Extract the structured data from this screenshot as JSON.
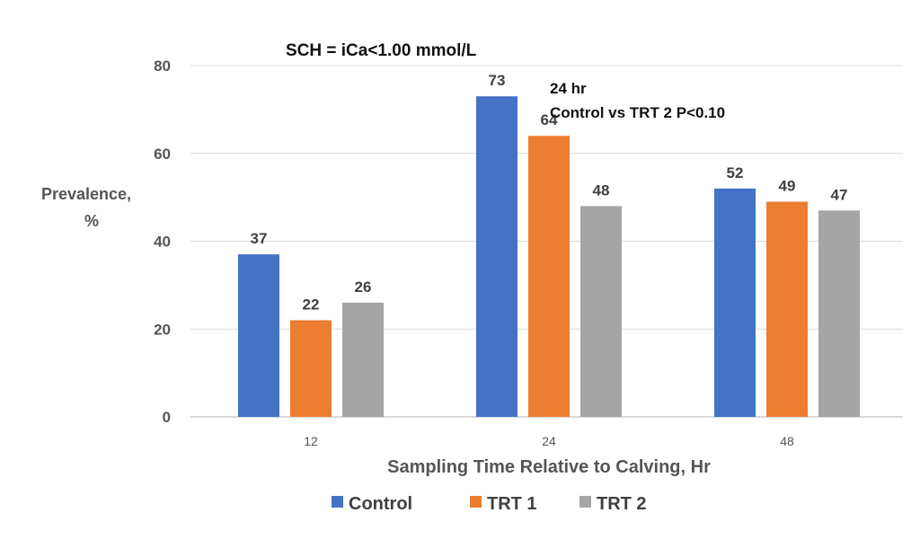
{
  "chart_data": {
    "type": "bar",
    "title": "SCH = iCa<1.00 mmol/L",
    "annotation": [
      "24 hr",
      "Control vs TRT 2 P<0.10"
    ],
    "ylabel": [
      "Prevalence,",
      "%"
    ],
    "xlabel": "Sampling Time Relative to Calving, Hr",
    "categories": [
      "12",
      "24",
      "48"
    ],
    "ylim": [
      0,
      80
    ],
    "yticks": [
      0,
      20,
      40,
      60,
      80
    ],
    "grid": true,
    "legend_position": "bottom",
    "series": [
      {
        "name": "Control",
        "values": [
          37,
          73,
          52
        ],
        "color": "#4472C4"
      },
      {
        "name": "TRT 1",
        "values": [
          22,
          64,
          49
        ],
        "color": "#ED7D31"
      },
      {
        "name": "TRT 2",
        "values": [
          26,
          48,
          47
        ],
        "color": "#A5A5A5"
      }
    ]
  }
}
